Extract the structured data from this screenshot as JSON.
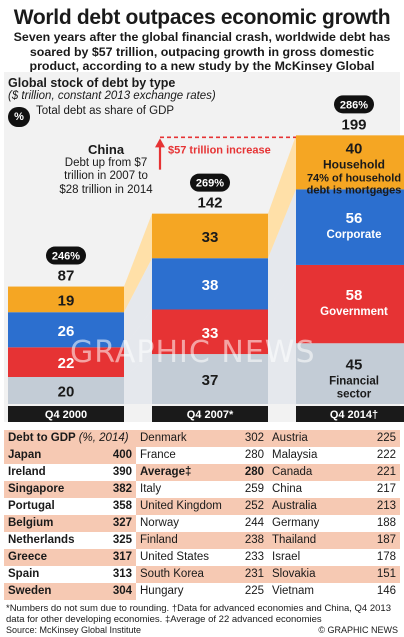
{
  "title": "World debt outpaces economic growth",
  "subtitle": "Seven years after the global financial crash, worldwide debt has soared by $57 trillion, outpacing growth in gross domestic product, according to a new study by the McKinsey Global Institute",
  "chart_heading": "Global stock of debt by type",
  "chart_unit": "($ trillion, constant 2013 exchange rates)",
  "legend": {
    "badge": "%",
    "text": "Total debt as share of GDP"
  },
  "china_note": {
    "title": "China",
    "body": "Debt up from $7 trillion in 2007 to $28 trillion in 2014"
  },
  "increase_label": "$57 trillion increase",
  "watermark": "GRAPHIC NEWS",
  "colors": {
    "financial": "#c3ccd6",
    "government": "#e63334",
    "corporate": "#2c6fcf",
    "household": "#f5a623",
    "connector": "#ffe0a8",
    "increase": "#e63334"
  },
  "chart_data": {
    "type": "bar",
    "stacked": true,
    "categories": [
      "Q4 2000",
      "Q4 2007*",
      "Q4 2014†"
    ],
    "totals": [
      87,
      142,
      199
    ],
    "share_of_gdp": [
      "246%",
      "269%",
      "286%"
    ],
    "series": [
      {
        "name": "Financial sector",
        "key": "financial",
        "values": [
          20,
          37,
          45
        ]
      },
      {
        "name": "Government",
        "key": "government",
        "values": [
          22,
          33,
          58
        ]
      },
      {
        "name": "Corporate",
        "key": "corporate",
        "values": [
          26,
          38,
          56
        ]
      },
      {
        "name": "Household",
        "key": "household",
        "values": [
          19,
          33,
          40
        ]
      }
    ],
    "household_note": "74% of household debt is mortgages",
    "ylim": [
      0,
      200
    ]
  },
  "table": {
    "header_label": "Debt to GDP",
    "header_unit": "(%, 2014)",
    "columns": [
      [
        {
          "country": "Japan",
          "value": "400"
        },
        {
          "country": "Ireland",
          "value": "390"
        },
        {
          "country": "Singapore",
          "value": "382"
        },
        {
          "country": "Portugal",
          "value": "358"
        },
        {
          "country": "Belgium",
          "value": "327"
        },
        {
          "country": "Netherlands",
          "value": "325"
        },
        {
          "country": "Greece",
          "value": "317"
        },
        {
          "country": "Spain",
          "value": "313"
        },
        {
          "country": "Sweden",
          "value": "304"
        }
      ],
      [
        {
          "country": "Denmark",
          "value": "302"
        },
        {
          "country": "France",
          "value": "280"
        },
        {
          "country": "Average‡",
          "value": "280"
        },
        {
          "country": "Italy",
          "value": "259"
        },
        {
          "country": "United Kingdom",
          "value": "252"
        },
        {
          "country": "Norway",
          "value": "244"
        },
        {
          "country": "Finland",
          "value": "238"
        },
        {
          "country": "United States",
          "value": "233"
        },
        {
          "country": "South Korea",
          "value": "231"
        },
        {
          "country": "Hungary",
          "value": "225"
        }
      ],
      [
        {
          "country": "Austria",
          "value": "225"
        },
        {
          "country": "Malaysia",
          "value": "222"
        },
        {
          "country": "Canada",
          "value": "221"
        },
        {
          "country": "China",
          "value": "217"
        },
        {
          "country": "Australia",
          "value": "213"
        },
        {
          "country": "Germany",
          "value": "188"
        },
        {
          "country": "Thailand",
          "value": "187"
        },
        {
          "country": "Israel",
          "value": "178"
        },
        {
          "country": "Slovakia",
          "value": "151"
        },
        {
          "country": "Vietnam",
          "value": "146"
        }
      ]
    ]
  },
  "footnote": "*Numbers do not sum due to rounding. †Data for advanced economies and China, Q4 2013 data for other developing economies. ‡Average of 22 advanced economies",
  "source": "Source: McKinsey Global Institute",
  "credit": "© GRAPHIC NEWS"
}
